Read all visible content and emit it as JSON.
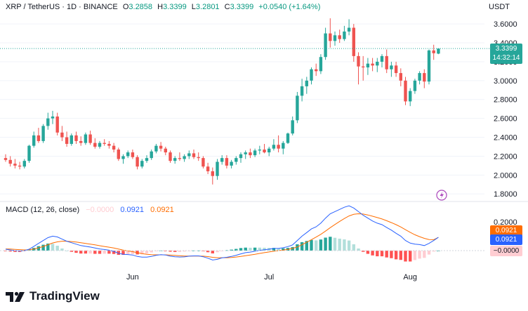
{
  "header": {
    "symbol": "XRP / TetherUS · 1D · BINANCE",
    "o_label": "O",
    "o_value": "3.2858",
    "h_label": "H",
    "h_value": "3.3399",
    "l_label": "L",
    "l_value": "3.2801",
    "c_label": "C",
    "c_value": "3.3399",
    "change": "+0.0540 (+1.64%)",
    "currency": "USDT"
  },
  "price_tag": {
    "price": "3.3399",
    "countdown": "14:32:14"
  },
  "macd_legend": {
    "title": "MACD (12, 26, close)",
    "hist": "−0.0000",
    "macd": "0.0921",
    "signal": "0.0921"
  },
  "macd_tags": {
    "signal": "0.0921",
    "macd": "0.0921",
    "hist": "−0.0000"
  },
  "brand": {
    "name": "TradingView"
  },
  "colors": {
    "up": "#26a69a",
    "down": "#ef5350",
    "macd_line": "#2962ff",
    "signal_line": "#ff6d00",
    "hist_up_strong": "#26a69a",
    "hist_up_weak": "#b2dfdb",
    "hist_down_strong": "#ff5252",
    "hist_down_weak": "#ffcdd2",
    "text": "#131722",
    "axis": "#787b86",
    "header_green": "#089981"
  },
  "chart_data": [
    {
      "type": "candlestick",
      "ylim": [
        1.72,
        3.72
      ],
      "y_ticks": [
        "3.6000",
        "3.4000",
        "3.2000",
        "3.0000",
        "2.8000",
        "2.6000",
        "2.4000",
        "2.2000",
        "2.0000",
        "1.8000"
      ],
      "x_ticks": [
        "Jun",
        "Jul",
        "Aug"
      ],
      "candles": [
        {
          "o": 2.18,
          "h": 2.22,
          "l": 2.14,
          "c": 2.16
        },
        {
          "o": 2.16,
          "h": 2.2,
          "l": 2.09,
          "c": 2.12
        },
        {
          "o": 2.12,
          "h": 2.17,
          "l": 2.07,
          "c": 2.1
        },
        {
          "o": 2.1,
          "h": 2.14,
          "l": 2.06,
          "c": 2.09
        },
        {
          "o": 2.09,
          "h": 2.17,
          "l": 2.07,
          "c": 2.15
        },
        {
          "o": 2.15,
          "h": 2.32,
          "l": 2.13,
          "c": 2.31
        },
        {
          "o": 2.31,
          "h": 2.46,
          "l": 2.29,
          "c": 2.42
        },
        {
          "o": 2.42,
          "h": 2.5,
          "l": 2.34,
          "c": 2.36
        },
        {
          "o": 2.36,
          "h": 2.54,
          "l": 2.34,
          "c": 2.52
        },
        {
          "o": 2.52,
          "h": 2.66,
          "l": 2.48,
          "c": 2.6
        },
        {
          "o": 2.6,
          "h": 2.68,
          "l": 2.54,
          "c": 2.62
        },
        {
          "o": 2.62,
          "h": 2.66,
          "l": 2.42,
          "c": 2.45
        },
        {
          "o": 2.45,
          "h": 2.52,
          "l": 2.36,
          "c": 2.4
        },
        {
          "o": 2.4,
          "h": 2.46,
          "l": 2.3,
          "c": 2.33
        },
        {
          "o": 2.33,
          "h": 2.44,
          "l": 2.31,
          "c": 2.42
        },
        {
          "o": 2.42,
          "h": 2.46,
          "l": 2.33,
          "c": 2.36
        },
        {
          "o": 2.36,
          "h": 2.41,
          "l": 2.31,
          "c": 2.34
        },
        {
          "o": 2.34,
          "h": 2.45,
          "l": 2.32,
          "c": 2.43
        },
        {
          "o": 2.43,
          "h": 2.47,
          "l": 2.32,
          "c": 2.34
        },
        {
          "o": 2.34,
          "h": 2.39,
          "l": 2.28,
          "c": 2.3
        },
        {
          "o": 2.3,
          "h": 2.36,
          "l": 2.28,
          "c": 2.34
        },
        {
          "o": 2.34,
          "h": 2.38,
          "l": 2.31,
          "c": 2.33
        },
        {
          "o": 2.33,
          "h": 2.36,
          "l": 2.28,
          "c": 2.31
        },
        {
          "o": 2.31,
          "h": 2.34,
          "l": 2.24,
          "c": 2.27
        },
        {
          "o": 2.27,
          "h": 2.29,
          "l": 2.15,
          "c": 2.17
        },
        {
          "o": 2.17,
          "h": 2.22,
          "l": 2.12,
          "c": 2.2
        },
        {
          "o": 2.2,
          "h": 2.26,
          "l": 2.18,
          "c": 2.24
        },
        {
          "o": 2.24,
          "h": 2.27,
          "l": 2.17,
          "c": 2.19
        },
        {
          "o": 2.19,
          "h": 2.21,
          "l": 2.06,
          "c": 2.09
        },
        {
          "o": 2.09,
          "h": 2.17,
          "l": 2.07,
          "c": 2.15
        },
        {
          "o": 2.15,
          "h": 2.21,
          "l": 2.13,
          "c": 2.18
        },
        {
          "o": 2.18,
          "h": 2.27,
          "l": 2.16,
          "c": 2.25
        },
        {
          "o": 2.25,
          "h": 2.33,
          "l": 2.23,
          "c": 2.31
        },
        {
          "o": 2.31,
          "h": 2.35,
          "l": 2.25,
          "c": 2.28
        },
        {
          "o": 2.28,
          "h": 2.3,
          "l": 2.21,
          "c": 2.24
        },
        {
          "o": 2.24,
          "h": 2.26,
          "l": 2.13,
          "c": 2.15
        },
        {
          "o": 2.15,
          "h": 2.2,
          "l": 2.12,
          "c": 2.18
        },
        {
          "o": 2.18,
          "h": 2.24,
          "l": 2.15,
          "c": 2.17
        },
        {
          "o": 2.17,
          "h": 2.22,
          "l": 2.14,
          "c": 2.2
        },
        {
          "o": 2.2,
          "h": 2.26,
          "l": 2.17,
          "c": 2.23
        },
        {
          "o": 2.23,
          "h": 2.27,
          "l": 2.17,
          "c": 2.19
        },
        {
          "o": 2.19,
          "h": 2.24,
          "l": 2.15,
          "c": 2.18
        },
        {
          "o": 2.18,
          "h": 2.2,
          "l": 2.07,
          "c": 2.09
        },
        {
          "o": 2.09,
          "h": 2.13,
          "l": 2.01,
          "c": 2.04
        },
        {
          "o": 2.04,
          "h": 2.08,
          "l": 1.9,
          "c": 1.99
        },
        {
          "o": 1.99,
          "h": 2.17,
          "l": 1.95,
          "c": 2.14
        },
        {
          "o": 2.14,
          "h": 2.21,
          "l": 2.11,
          "c": 2.18
        },
        {
          "o": 2.18,
          "h": 2.21,
          "l": 2.07,
          "c": 2.1
        },
        {
          "o": 2.1,
          "h": 2.16,
          "l": 2.07,
          "c": 2.14
        },
        {
          "o": 2.14,
          "h": 2.2,
          "l": 2.11,
          "c": 2.18
        },
        {
          "o": 2.18,
          "h": 2.24,
          "l": 2.13,
          "c": 2.22
        },
        {
          "o": 2.22,
          "h": 2.26,
          "l": 2.17,
          "c": 2.24
        },
        {
          "o": 2.24,
          "h": 2.28,
          "l": 2.18,
          "c": 2.21
        },
        {
          "o": 2.21,
          "h": 2.28,
          "l": 2.19,
          "c": 2.26
        },
        {
          "o": 2.26,
          "h": 2.31,
          "l": 2.22,
          "c": 2.27
        },
        {
          "o": 2.27,
          "h": 2.33,
          "l": 2.23,
          "c": 2.24
        },
        {
          "o": 2.24,
          "h": 2.3,
          "l": 2.2,
          "c": 2.28
        },
        {
          "o": 2.28,
          "h": 2.38,
          "l": 2.26,
          "c": 2.32
        },
        {
          "o": 2.32,
          "h": 2.42,
          "l": 2.24,
          "c": 2.28
        },
        {
          "o": 2.28,
          "h": 2.36,
          "l": 2.22,
          "c": 2.34
        },
        {
          "o": 2.34,
          "h": 2.45,
          "l": 2.33,
          "c": 2.44
        },
        {
          "o": 2.44,
          "h": 2.62,
          "l": 2.42,
          "c": 2.58
        },
        {
          "o": 2.58,
          "h": 2.88,
          "l": 2.55,
          "c": 2.84
        },
        {
          "o": 2.84,
          "h": 3.02,
          "l": 2.78,
          "c": 2.94
        },
        {
          "o": 2.94,
          "h": 3.04,
          "l": 2.86,
          "c": 3.0
        },
        {
          "o": 3.0,
          "h": 3.14,
          "l": 2.96,
          "c": 3.12
        },
        {
          "o": 3.12,
          "h": 3.18,
          "l": 3.05,
          "c": 3.1
        },
        {
          "o": 3.1,
          "h": 3.28,
          "l": 3.07,
          "c": 3.25
        },
        {
          "o": 3.25,
          "h": 3.56,
          "l": 3.22,
          "c": 3.5
        },
        {
          "o": 3.5,
          "h": 3.66,
          "l": 3.35,
          "c": 3.42
        },
        {
          "o": 3.42,
          "h": 3.52,
          "l": 3.37,
          "c": 3.48
        },
        {
          "o": 3.48,
          "h": 3.54,
          "l": 3.4,
          "c": 3.44
        },
        {
          "o": 3.44,
          "h": 3.58,
          "l": 3.42,
          "c": 3.52
        },
        {
          "o": 3.52,
          "h": 3.65,
          "l": 3.48,
          "c": 3.56
        },
        {
          "o": 3.56,
          "h": 3.6,
          "l": 3.2,
          "c": 3.26
        },
        {
          "o": 3.26,
          "h": 3.3,
          "l": 2.96,
          "c": 3.15
        },
        {
          "o": 3.15,
          "h": 3.26,
          "l": 3.0,
          "c": 3.14
        },
        {
          "o": 3.14,
          "h": 3.24,
          "l": 3.06,
          "c": 3.18
        },
        {
          "o": 3.18,
          "h": 3.24,
          "l": 3.1,
          "c": 3.16
        },
        {
          "o": 3.16,
          "h": 3.24,
          "l": 3.09,
          "c": 3.2
        },
        {
          "o": 3.2,
          "h": 3.28,
          "l": 3.14,
          "c": 3.26
        },
        {
          "o": 3.26,
          "h": 3.33,
          "l": 3.08,
          "c": 3.12
        },
        {
          "o": 3.12,
          "h": 3.2,
          "l": 3.04,
          "c": 3.16
        },
        {
          "o": 3.16,
          "h": 3.2,
          "l": 3.04,
          "c": 3.08
        },
        {
          "o": 3.08,
          "h": 3.13,
          "l": 2.94,
          "c": 3.0
        },
        {
          "o": 3.0,
          "h": 3.04,
          "l": 2.74,
          "c": 2.78
        },
        {
          "o": 2.78,
          "h": 2.92,
          "l": 2.73,
          "c": 2.89
        },
        {
          "o": 2.89,
          "h": 3.02,
          "l": 2.86,
          "c": 3.0
        },
        {
          "o": 3.0,
          "h": 3.1,
          "l": 2.96,
          "c": 3.08
        },
        {
          "o": 3.08,
          "h": 3.12,
          "l": 2.92,
          "c": 2.99
        },
        {
          "o": 2.99,
          "h": 3.33,
          "l": 2.96,
          "c": 3.32
        },
        {
          "o": 3.32,
          "h": 3.38,
          "l": 3.22,
          "c": 3.29
        },
        {
          "o": 3.2858,
          "h": 3.3399,
          "l": 3.2801,
          "c": 3.3399
        }
      ]
    },
    {
      "type": "line",
      "title": "MACD (12, 26, close)",
      "ylim": [
        -0.16,
        0.34
      ],
      "y_ticks": [
        "0.2000"
      ],
      "series": [
        {
          "name": "MACD",
          "values": [
            0.01,
            0.005,
            0.0,
            -0.002,
            0.0,
            0.01,
            0.03,
            0.05,
            0.07,
            0.09,
            0.1,
            0.095,
            0.08,
            0.065,
            0.055,
            0.045,
            0.035,
            0.03,
            0.025,
            0.018,
            0.012,
            0.008,
            0.003,
            -0.005,
            -0.018,
            -0.025,
            -0.027,
            -0.03,
            -0.04,
            -0.045,
            -0.045,
            -0.04,
            -0.032,
            -0.028,
            -0.03,
            -0.038,
            -0.042,
            -0.044,
            -0.043,
            -0.038,
            -0.036,
            -0.036,
            -0.042,
            -0.052,
            -0.065,
            -0.06,
            -0.05,
            -0.046,
            -0.04,
            -0.032,
            -0.022,
            -0.014,
            -0.01,
            -0.004,
            0.002,
            0.006,
            0.01,
            0.015,
            0.015,
            0.02,
            0.028,
            0.04,
            0.07,
            0.1,
            0.125,
            0.15,
            0.165,
            0.19,
            0.225,
            0.255,
            0.27,
            0.285,
            0.3,
            0.31,
            0.295,
            0.27,
            0.245,
            0.225,
            0.205,
            0.19,
            0.18,
            0.16,
            0.142,
            0.12,
            0.1,
            0.07,
            0.052,
            0.045,
            0.042,
            0.035,
            0.05,
            0.07,
            0.0921
          ]
        },
        {
          "name": "Signal",
          "values": [
            0.012,
            0.011,
            0.009,
            0.007,
            0.005,
            0.006,
            0.011,
            0.019,
            0.029,
            0.041,
            0.053,
            0.061,
            0.065,
            0.065,
            0.063,
            0.06,
            0.055,
            0.05,
            0.045,
            0.04,
            0.034,
            0.029,
            0.024,
            0.018,
            0.011,
            0.004,
            -0.002,
            -0.007,
            -0.014,
            -0.02,
            -0.025,
            -0.028,
            -0.029,
            -0.029,
            -0.029,
            -0.031,
            -0.033,
            -0.035,
            -0.037,
            -0.037,
            -0.037,
            -0.037,
            -0.038,
            -0.041,
            -0.046,
            -0.049,
            -0.049,
            -0.049,
            -0.047,
            -0.044,
            -0.04,
            -0.035,
            -0.03,
            -0.025,
            -0.019,
            -0.014,
            -0.009,
            -0.004,
            0.0,
            0.004,
            0.009,
            0.015,
            0.026,
            0.041,
            0.058,
            0.076,
            0.094,
            0.113,
            0.135,
            0.159,
            0.181,
            0.202,
            0.222,
            0.24,
            0.251,
            0.255,
            0.253,
            0.247,
            0.238,
            0.229,
            0.219,
            0.207,
            0.194,
            0.18,
            0.164,
            0.145,
            0.127,
            0.11,
            0.097,
            0.085,
            0.077,
            0.076,
            0.0921
          ]
        }
      ]
    }
  ]
}
